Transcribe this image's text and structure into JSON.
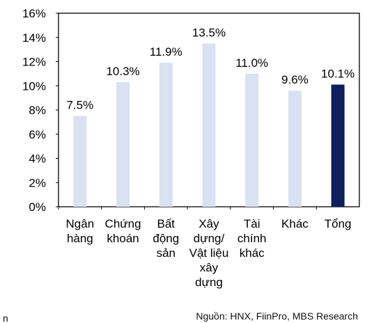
{
  "chart_data": {
    "type": "bar",
    "title": "",
    "xlabel": "",
    "ylabel": "",
    "ylim": [
      0,
      16
    ],
    "y_ticks": [
      "0%",
      "2%",
      "4%",
      "6%",
      "8%",
      "10%",
      "12%",
      "14%",
      "16%"
    ],
    "grid": false,
    "categories": [
      [
        "Ngân",
        "hàng"
      ],
      [
        "Chứng",
        "khoán"
      ],
      [
        "Bất",
        "động",
        "sản"
      ],
      [
        "Xây",
        "dựng/",
        "Vật liệu",
        "xây",
        "dựng"
      ],
      [
        "Tài",
        "chính",
        "khác"
      ],
      [
        "Khác"
      ],
      [
        "Tổng"
      ]
    ],
    "values": [
      7.5,
      10.3,
      11.9,
      13.5,
      11.0,
      9.6,
      10.1
    ],
    "data_labels": [
      "7.5%",
      "10.3%",
      "11.9%",
      "13.5%",
      "11.0%",
      "9.6%",
      "10.1%"
    ],
    "bar_colors": [
      "#d9e1f2",
      "#d9e1f2",
      "#d9e1f2",
      "#d9e1f2",
      "#d9e1f2",
      "#d9e1f2",
      "#0d1f5c"
    ]
  },
  "footer": {
    "source": "Nguồn: HNX, FiinPro, MBS Research",
    "left_fragment": "n"
  }
}
